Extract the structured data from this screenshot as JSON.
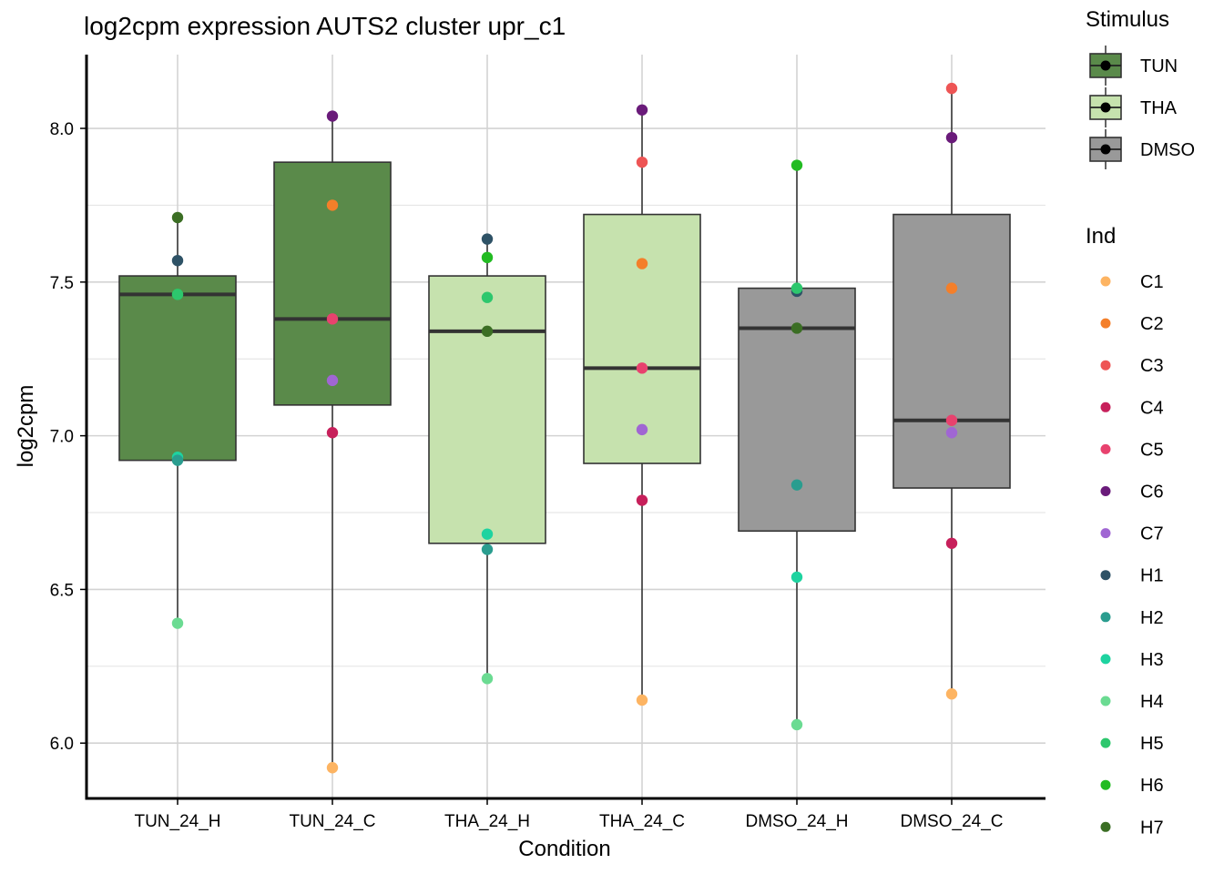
{
  "chart_data": {
    "type": "boxplot",
    "title": "log2cpm expression AUTS2 cluster upr_c1",
    "xlabel": "Condition",
    "ylabel": "log2cpm",
    "ylim": [
      5.82,
      8.24
    ],
    "yticks": [
      6.0,
      6.5,
      7.0,
      7.5,
      8.0
    ],
    "ytick_labels": [
      "6.0",
      "6.5",
      "7.0",
      "7.5",
      "8.0"
    ],
    "categories": [
      "TUN_24_H",
      "TUN_24_C",
      "THA_24_H",
      "THA_24_C",
      "DMSO_24_H",
      "DMSO_24_C"
    ],
    "stimulus_of_category": [
      "TUN",
      "TUN",
      "THA",
      "THA",
      "DMSO",
      "DMSO"
    ],
    "grid": true,
    "boxes": [
      {
        "category": "TUN_24_H",
        "lower_whisker": 6.39,
        "q1": 6.92,
        "median": 7.46,
        "q3": 7.52,
        "upper_whisker": 7.71
      },
      {
        "category": "TUN_24_C",
        "lower_whisker": 5.92,
        "q1": 7.1,
        "median": 7.38,
        "q3": 7.89,
        "upper_whisker": 8.04
      },
      {
        "category": "THA_24_H",
        "lower_whisker": 6.21,
        "q1": 6.65,
        "median": 7.34,
        "q3": 7.52,
        "upper_whisker": 7.64
      },
      {
        "category": "THA_24_C",
        "lower_whisker": 6.14,
        "q1": 6.91,
        "median": 7.22,
        "q3": 7.72,
        "upper_whisker": 8.06
      },
      {
        "category": "DMSO_24_H",
        "lower_whisker": 6.06,
        "q1": 6.69,
        "median": 7.35,
        "q3": 7.48,
        "upper_whisker": 7.88
      },
      {
        "category": "DMSO_24_C",
        "lower_whisker": 6.16,
        "q1": 6.83,
        "median": 7.05,
        "q3": 7.72,
        "upper_whisker": 8.13
      }
    ],
    "points": [
      {
        "category": "TUN_24_H",
        "ind": "H7",
        "value": 7.71
      },
      {
        "category": "TUN_24_H",
        "ind": "H1",
        "value": 7.57
      },
      {
        "category": "TUN_24_H",
        "ind": "H6",
        "value": 7.46
      },
      {
        "category": "TUN_24_H",
        "ind": "H5",
        "value": 7.46
      },
      {
        "category": "TUN_24_H",
        "ind": "H3",
        "value": 6.93
      },
      {
        "category": "TUN_24_H",
        "ind": "H2",
        "value": 6.92
      },
      {
        "category": "TUN_24_H",
        "ind": "H4",
        "value": 6.39
      },
      {
        "category": "TUN_24_C",
        "ind": "C6",
        "value": 8.04
      },
      {
        "category": "TUN_24_C",
        "ind": "C2",
        "value": 7.75
      },
      {
        "category": "TUN_24_C",
        "ind": "C5",
        "value": 7.38
      },
      {
        "category": "TUN_24_C",
        "ind": "C7",
        "value": 7.18
      },
      {
        "category": "TUN_24_C",
        "ind": "C4",
        "value": 7.01
      },
      {
        "category": "TUN_24_C",
        "ind": "C1",
        "value": 5.92
      },
      {
        "category": "THA_24_H",
        "ind": "H1",
        "value": 7.64
      },
      {
        "category": "THA_24_H",
        "ind": "H6",
        "value": 7.58
      },
      {
        "category": "THA_24_H",
        "ind": "H5",
        "value": 7.45
      },
      {
        "category": "THA_24_H",
        "ind": "H7",
        "value": 7.34
      },
      {
        "category": "THA_24_H",
        "ind": "H3",
        "value": 6.68
      },
      {
        "category": "THA_24_H",
        "ind": "H2",
        "value": 6.63
      },
      {
        "category": "THA_24_H",
        "ind": "H4",
        "value": 6.21
      },
      {
        "category": "THA_24_C",
        "ind": "C6",
        "value": 8.06
      },
      {
        "category": "THA_24_C",
        "ind": "C3",
        "value": 7.89
      },
      {
        "category": "THA_24_C",
        "ind": "C2",
        "value": 7.56
      },
      {
        "category": "THA_24_C",
        "ind": "C5",
        "value": 7.22
      },
      {
        "category": "THA_24_C",
        "ind": "C7",
        "value": 7.02
      },
      {
        "category": "THA_24_C",
        "ind": "C4",
        "value": 6.79
      },
      {
        "category": "THA_24_C",
        "ind": "C1",
        "value": 6.14
      },
      {
        "category": "DMSO_24_H",
        "ind": "H6",
        "value": 7.88
      },
      {
        "category": "DMSO_24_H",
        "ind": "H1",
        "value": 7.47
      },
      {
        "category": "DMSO_24_H",
        "ind": "H5",
        "value": 7.48
      },
      {
        "category": "DMSO_24_H",
        "ind": "H7",
        "value": 7.35
      },
      {
        "category": "DMSO_24_H",
        "ind": "H2",
        "value": 6.84
      },
      {
        "category": "DMSO_24_H",
        "ind": "H3",
        "value": 6.54
      },
      {
        "category": "DMSO_24_H",
        "ind": "H4",
        "value": 6.06
      },
      {
        "category": "DMSO_24_C",
        "ind": "C3",
        "value": 8.13
      },
      {
        "category": "DMSO_24_C",
        "ind": "C6",
        "value": 7.97
      },
      {
        "category": "DMSO_24_C",
        "ind": "C2",
        "value": 7.48
      },
      {
        "category": "DMSO_24_C",
        "ind": "C5",
        "value": 7.05
      },
      {
        "category": "DMSO_24_C",
        "ind": "C7",
        "value": 7.01
      },
      {
        "category": "DMSO_24_C",
        "ind": "C4",
        "value": 6.65
      },
      {
        "category": "DMSO_24_C",
        "ind": "C1",
        "value": 6.16
      }
    ]
  },
  "legend": {
    "stimulus": {
      "title": "Stimulus",
      "items": [
        {
          "label": "TUN",
          "color": "#5A8A4A"
        },
        {
          "label": "THA",
          "color": "#C6E2AE"
        },
        {
          "label": "DMSO",
          "color": "#999999"
        }
      ]
    },
    "ind": {
      "title": "Ind",
      "items": [
        {
          "label": "C1",
          "color": "#FDB462"
        },
        {
          "label": "C2",
          "color": "#F47F2A"
        },
        {
          "label": "C3",
          "color": "#EE5555"
        },
        {
          "label": "C4",
          "color": "#C7205B"
        },
        {
          "label": "C5",
          "color": "#E8426E"
        },
        {
          "label": "C6",
          "color": "#6A1B7A"
        },
        {
          "label": "C7",
          "color": "#A066D3"
        },
        {
          "label": "H1",
          "color": "#2E5266"
        },
        {
          "label": "H2",
          "color": "#2A9D8F"
        },
        {
          "label": "H3",
          "color": "#1ED3A0"
        },
        {
          "label": "H4",
          "color": "#6BDB92"
        },
        {
          "label": "H5",
          "color": "#2DC76D"
        },
        {
          "label": "H6",
          "color": "#22BB22"
        },
        {
          "label": "H7",
          "color": "#3B6E24"
        }
      ]
    }
  }
}
